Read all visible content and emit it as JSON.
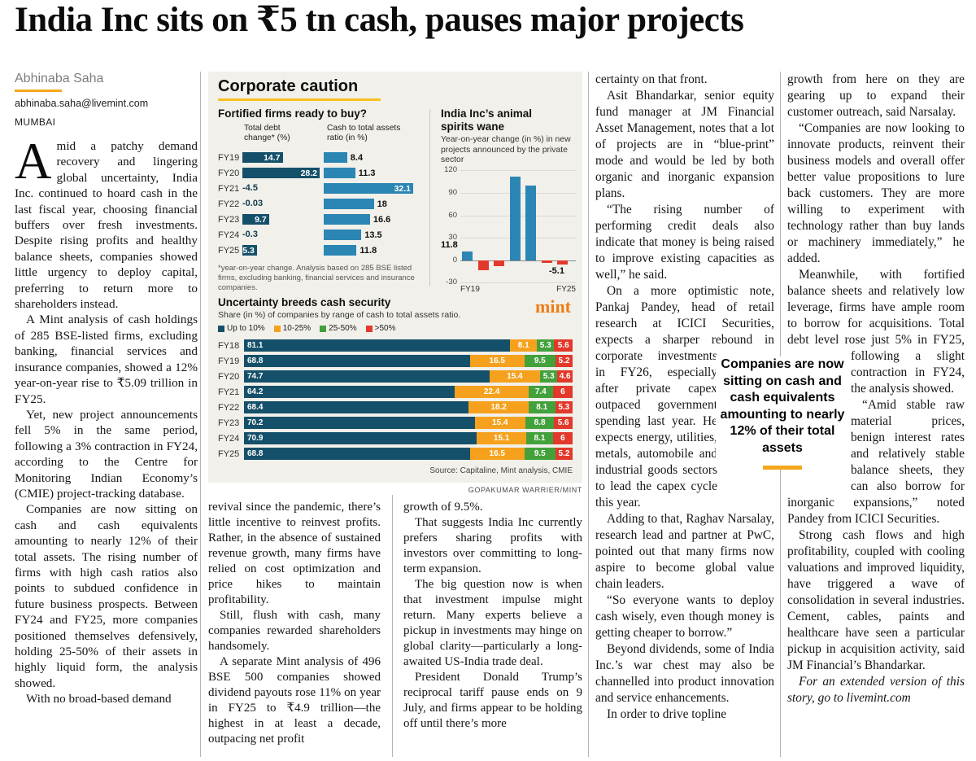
{
  "masthead": {
    "headline": "India Inc sits on ₹5 tn cash, pauses major projects"
  },
  "byline": {
    "author": "Abhinaba Saha",
    "email": "abhinaba.saha@livemint.com",
    "location": "MUMBAI"
  },
  "article": {
    "col1": {
      "dropcap": "A",
      "p0": "mid a patchy demand recovery and lingering global uncertainty, India Inc. continued to hoard cash in the last fiscal year, choosing financial buffers over fresh investments. Despite rising profits and healthy balance sheets, companies showed little urgency to deploy capital, preferring to return more to shareholders instead.",
      "p1": "A Mint analysis of cash holdings of 285 BSE-listed firms, excluding banking, financial services and insurance companies, showed a 12% year-on-year rise to ₹5.09 trillion in FY25.",
      "p2": "Yet, new project announcements fell 5% in the same period, following a 3% contraction in FY24, according to the Centre for Monitoring Indian Economy’s (CMIE) project-tracking database.",
      "p3": "Companies are now sitting on cash and cash equivalents amounting to nearly 12% of their total assets. The rising number of firms with high cash ratios also points to subdued confidence in future business prospects. Between FY24 and FY25, more companies positioned themselves defensively, holding 25-50% of their assets in highly liquid form, the analysis showed.",
      "p4": "With no broad-based demand"
    },
    "col2": {
      "p0": "revival since the pandemic, there’s little incentive to reinvest profits. Rather, in the absence of sustained revenue growth, many firms have relied on cost optimization and price hikes to maintain profitability.",
      "p1": "Still, flush with cash, many companies rewarded shareholders handsomely.",
      "p2": "A separate Mint analysis of 496 BSE 500 companies showed dividend payouts rose 11% on year in FY25 to ₹4.9 trillion—the highest in at least a decade, outpacing net profit"
    },
    "col3": {
      "p0": "growth of 9.5%.",
      "p1": "That suggests India Inc currently prefers sharing profits with investors over committing to long-term expansion.",
      "p2": "The big question now is when that investment impulse might return. Many experts believe a pickup in investments may hinge on global clarity—particularly a long-awaited US-India trade deal.",
      "p3": "President Donald Trump’s reciprocal tariff pause ends on 9 July, and firms appear to be holding off until there’s more"
    },
    "col4": {
      "p0": "certainty on that front.",
      "p1": "Asit Bhandarkar, senior equity fund manager at JM Financial Asset Management, notes that a lot of projects are in “blue-print” mode and would be led by both organic and inorganic expansion plans.",
      "p2": "“The rising number of performing credit deals also indicate that money is being raised to improve existing capacities as well,” he said.",
      "p3a": "On a more optimistic note, Pankaj Pandey, head of retail research at ICICI Securities, expects a sharper rebound in",
      "p3b": "corporate investments in FY26, especially after private capex outpaced government spending last year. He expects energy, utilities, metals, automobile and industrial goods sectors to lead the capex cycle this year.",
      "p4": "Adding to that, Raghav Narsalay, research lead and partner at PwC, pointed out that many firms now aspire to become global value chain leaders.",
      "p5": "“So everyone wants to deploy cash wisely, even though money is getting cheaper to borrow.”",
      "p6": "Beyond dividends, some of India Inc.’s war chest may also be channelled into product innovation and service enhancements.",
      "p7": "In order to drive topline"
    },
    "col5": {
      "p0": "growth from here on they are gearing up to expand their customer outreach, said Narsalay.",
      "p1": "“Companies are now looking to innovate products, reinvent their business models and overall offer better value propositions to lure back customers. They are more willing to experiment with technology rather than buy lands or machinery immediately,” he added.",
      "p2a": "Meanwhile, with fortified balance sheets and relatively low leverage, firms have ample room to borrow for acquisitions. Total debt level rose just 5% in FY25, following a slight",
      "p2b": "contraction in FY24, the analysis showed.",
      "p3": "“Amid stable raw material prices, benign interest rates and relatively stable balance sheets, they can also borrow for inorganic expansions,” noted Pandey from ICICI Securities.",
      "p4": "Strong cash flows and high profitability, coupled with cooling valuations and improved liquidity, have triggered a wave of consolidation in several industries. Cement, cables, paints and healthcare have seen a particular pickup in acquisition activity, said JM Financial’s Bhandarkar.",
      "p5": "For an extended version of this story, go to livemint.com"
    }
  },
  "pullquote": {
    "text": "Companies are now sitting on cash and cash equivalents amounting to nearly 12% of their total assets"
  },
  "graphic": {
    "heading": "Corporate caution",
    "logo": "mint",
    "credit": "GOPAKUMAR WARRIER/MINT"
  },
  "chart_data": [
    {
      "type": "bar",
      "variant": "grouped-horizontal",
      "title": "Fortified firms ready to buy?",
      "categories": [
        "FY19",
        "FY20",
        "FY21",
        "FY22",
        "FY23",
        "FY24",
        "FY25"
      ],
      "series": [
        {
          "name": "Total debt change* (%)",
          "color": "#15506a",
          "values": [
            14.7,
            28.2,
            -4.5,
            -0.03,
            9.7,
            -0.3,
            5.3
          ]
        },
        {
          "name": "Cash to total assets ratio (in %)",
          "color": "#2b86b4",
          "values": [
            8.4,
            11.3,
            32.1,
            18,
            16.6,
            13.5,
            11.8
          ]
        }
      ],
      "footnote": "*year-on-year change. Analysis based on 285 BSE listed firms, excluding banking, financial services and insurance companies."
    },
    {
      "type": "bar",
      "variant": "vertical",
      "title": "India Inc’s animal spirits wane",
      "subtitle": "Year-on-year change (in %) in new projects announced by the private sector",
      "categories": [
        "FY19",
        "FY20",
        "FY21",
        "FY22",
        "FY23",
        "FY24",
        "FY25"
      ],
      "values": [
        11.8,
        -13,
        -8,
        112,
        100,
        -3,
        -5.1
      ],
      "value_labels": [
        {
          "index": 0,
          "label": "11.8"
        },
        {
          "index": 6,
          "label": "-5.1"
        }
      ],
      "ylim": [
        -30,
        120
      ],
      "yticks": [
        120,
        90,
        60,
        30,
        0,
        -30
      ],
      "x_axis_labels": [
        "FY19",
        "FY25"
      ],
      "positive_color": "#2b86b4",
      "negative_color": "#e2392c"
    },
    {
      "type": "bar",
      "variant": "stacked-horizontal",
      "title": "Uncertainty breeds cash security",
      "subtitle": "Share (in %) of companies by range of cash to total assets ratio.",
      "categories": [
        "FY18",
        "FY19",
        "FY20",
        "FY21",
        "FY22",
        "FY23",
        "FY24",
        "FY25"
      ],
      "legend": [
        {
          "label": "Up to 10%",
          "color": "#15506a"
        },
        {
          "label": "10-25%",
          "color": "#f6a11e"
        },
        {
          "label": "25-50%",
          "color": "#43a13c"
        },
        {
          "label": ">50%",
          "color": "#e2392c"
        }
      ],
      "series": [
        {
          "name": "Up to 10%",
          "values": [
            81.1,
            68.8,
            74.7,
            64.2,
            68.4,
            70.2,
            70.9,
            68.8
          ]
        },
        {
          "name": "10-25%",
          "values": [
            8.1,
            16.5,
            15.4,
            22.4,
            18.2,
            15.4,
            15.1,
            16.5
          ]
        },
        {
          "name": "25-50%",
          "values": [
            5.3,
            9.5,
            5.3,
            7.4,
            8.1,
            8.8,
            8.1,
            9.5
          ]
        },
        {
          "name": ">50%",
          "values": [
            5.6,
            5.2,
            4.6,
            6,
            5.3,
            5.6,
            6,
            5.2
          ]
        }
      ],
      "source": "Source: Capitaline, Mint analysis, CMIE"
    }
  ]
}
